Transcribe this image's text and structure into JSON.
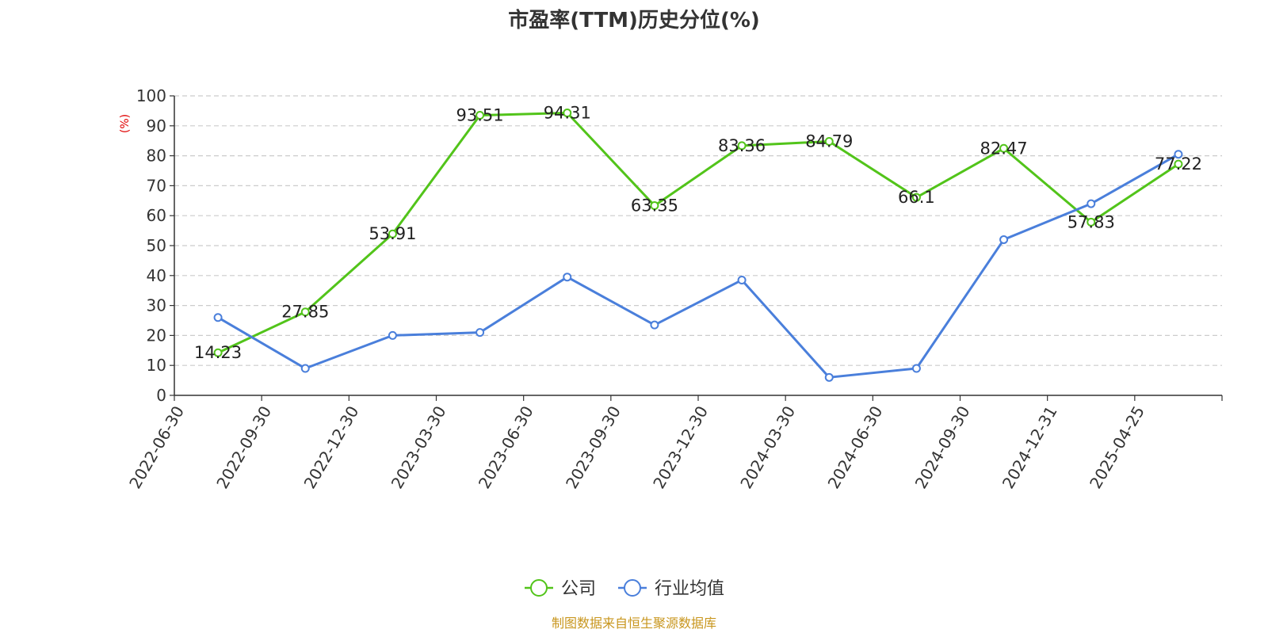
{
  "chart_data": {
    "type": "line",
    "title": "市盈率(TTM)历史分位(%)",
    "ylabel": "(%)",
    "xlabel": "",
    "ylim": [
      0,
      100
    ],
    "yticks": [
      0,
      10,
      20,
      30,
      40,
      50,
      60,
      70,
      80,
      90,
      100
    ],
    "categories": [
      "2022-06-30",
      "2022-09-30",
      "2022-12-30",
      "2023-03-30",
      "2023-06-30",
      "2023-09-30",
      "2023-12-30",
      "2024-03-30",
      "2024-06-30",
      "2024-09-30",
      "2024-12-31",
      "2025-04-25"
    ],
    "grid": true,
    "legend_position": "bottom-center",
    "series": [
      {
        "name": "公司",
        "color": "#52c41a",
        "show_labels": true,
        "values": [
          14.23,
          27.85,
          53.91,
          93.51,
          94.31,
          63.35,
          83.36,
          84.79,
          66.1,
          82.47,
          57.83,
          77.22
        ]
      },
      {
        "name": "行业均值",
        "color": "#4a7fdb",
        "show_labels": false,
        "values": [
          26,
          9,
          20,
          21,
          39.5,
          23.5,
          38.5,
          6,
          9,
          52,
          64,
          80.5
        ]
      }
    ]
  },
  "footer": {
    "source": "制图数据来自恒生聚源数据库",
    "source_color": "#c8961e"
  }
}
